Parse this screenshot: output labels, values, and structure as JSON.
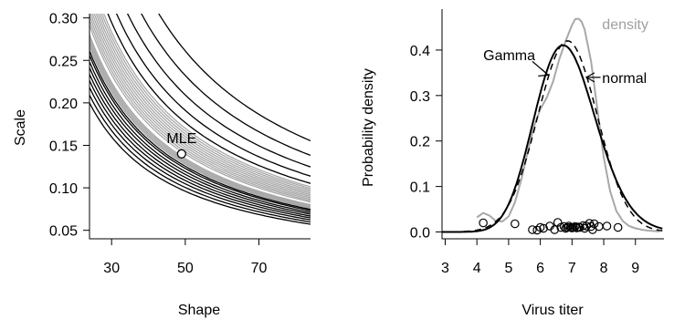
{
  "chart_data": [
    {
      "type": "contour",
      "xlabel": "Shape",
      "ylabel": "Scale",
      "xlim": [
        24,
        84
      ],
      "ylim": [
        0.04,
        0.305
      ],
      "x_ticks": [
        30,
        50,
        70
      ],
      "y_ticks": [
        0.05,
        0.1,
        0.15,
        0.2,
        0.25,
        0.3
      ],
      "y_tick_labels": [
        "0.05",
        "0.10",
        "0.15",
        "0.20",
        "0.25",
        "0.30"
      ],
      "point": {
        "label": "MLE",
        "x": 49,
        "y": 0.14
      },
      "ridge_k": 6.86,
      "gray_level_offsets": [
        -0.55,
        -0.45,
        -0.35,
        -0.25,
        -0.15,
        0.15,
        0.3,
        0.45,
        0.6,
        0.75,
        0.9,
        1.05,
        1.2,
        1.35,
        1.5,
        1.65
      ],
      "black_level_offsets": [
        -2.75,
        -2.4,
        -2.08,
        -1.8,
        -1.55,
        -1.3,
        -1.08,
        -0.85,
        -0.7,
        1.95,
        2.55,
        3.25,
        4.05,
        4.95
      ],
      "colors": {
        "gray": "#a8a8a8",
        "black": "#000000"
      }
    },
    {
      "type": "line",
      "xlabel": "Virus titer",
      "ylabel": "Probability density",
      "xlim": [
        2.9,
        9.9
      ],
      "ylim": [
        -0.015,
        0.49
      ],
      "x_ticks": [
        3,
        4,
        5,
        6,
        7,
        8,
        9
      ],
      "y_ticks": [
        0.0,
        0.1,
        0.2,
        0.3,
        0.4
      ],
      "y_tick_labels": [
        "0.0",
        "0.1",
        "0.2",
        "0.3",
        "0.4"
      ],
      "series": [
        {
          "name": "density",
          "color": "#a8a8a8",
          "dash": "",
          "x": [
            4.0,
            4.2,
            4.4,
            4.6,
            4.8,
            5.0,
            5.2,
            5.4,
            5.6,
            5.8,
            6.0,
            6.2,
            6.4,
            6.6,
            6.8,
            7.0,
            7.1,
            7.2,
            7.3,
            7.4,
            7.6,
            7.8,
            8.0,
            8.2,
            8.4,
            8.6,
            8.8,
            9.0,
            9.2,
            9.4,
            9.6,
            9.75
          ],
          "y": [
            0.032,
            0.042,
            0.036,
            0.024,
            0.023,
            0.034,
            0.065,
            0.115,
            0.175,
            0.232,
            0.27,
            0.295,
            0.33,
            0.38,
            0.42,
            0.455,
            0.468,
            0.469,
            0.463,
            0.445,
            0.375,
            0.27,
            0.165,
            0.09,
            0.046,
            0.024,
            0.013,
            0.008,
            0.005,
            0.003,
            0.002,
            0.001
          ]
        },
        {
          "name": "Gamma",
          "color": "#000000",
          "dash": "",
          "mean": 6.86,
          "sd": 0.97,
          "shape": 49
        },
        {
          "name": "normal",
          "color": "#000000",
          "dash": "7,5",
          "mean": 6.86,
          "sd": 0.94
        }
      ],
      "annotations": [
        {
          "text": "Gamma",
          "series": "Gamma"
        },
        {
          "text": "normal",
          "series": "normal"
        },
        {
          "text": "density",
          "series": "density"
        }
      ],
      "observations": [
        4.2,
        5.2,
        5.75,
        5.9,
        6.0,
        6.1,
        6.3,
        6.45,
        6.55,
        6.65,
        6.75,
        6.8,
        6.85,
        6.9,
        6.95,
        7.0,
        7.05,
        7.1,
        7.15,
        7.2,
        7.25,
        7.35,
        7.4,
        7.45,
        7.55,
        7.6,
        7.65,
        7.7,
        7.85,
        8.1,
        8.45
      ],
      "observation_y": [
        0.02,
        0.018,
        0.005,
        0.004,
        0.01,
        0.008,
        0.013,
        0.005,
        0.021,
        0.01,
        0.012,
        0.008,
        0.01,
        0.013,
        0.01,
        0.009,
        0.01,
        0.012,
        0.009,
        0.011,
        0.01,
        0.014,
        0.008,
        0.013,
        0.019,
        0.012,
        0.005,
        0.018,
        0.012,
        0.013,
        0.01
      ]
    }
  ]
}
